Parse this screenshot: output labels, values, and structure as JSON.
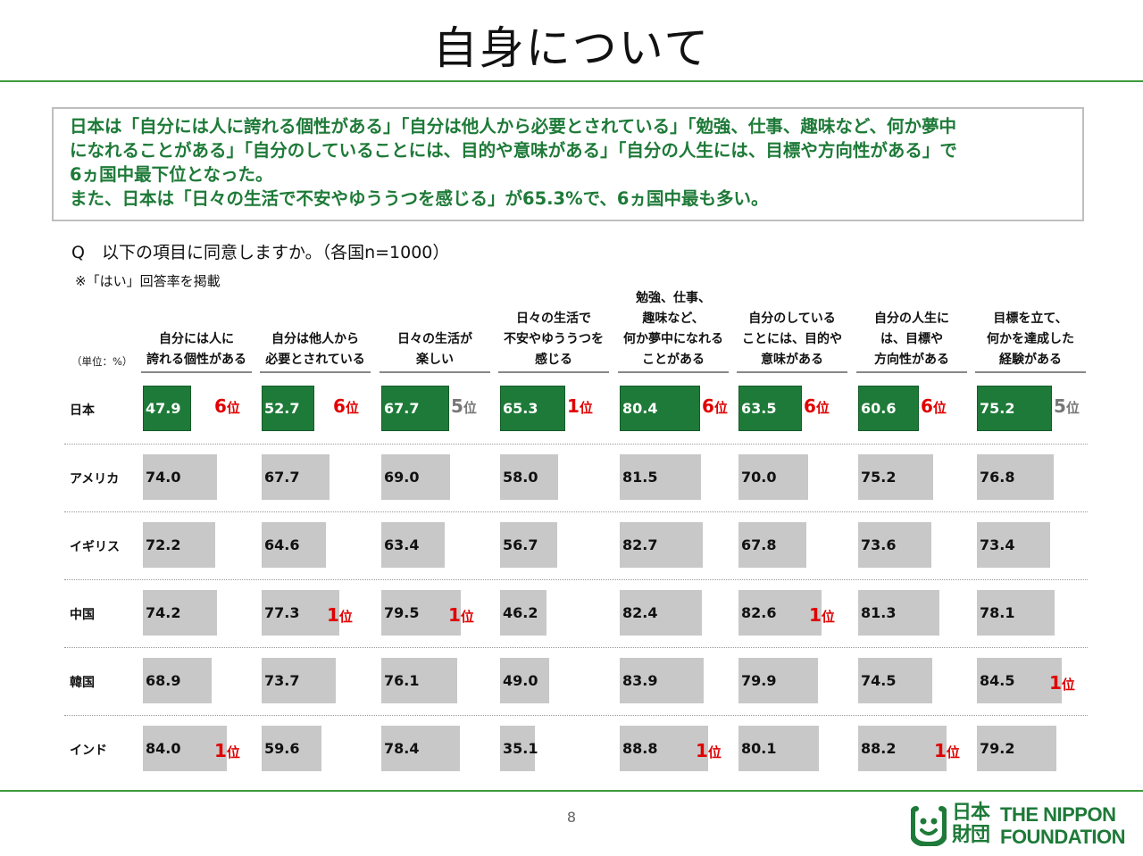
{
  "page": {
    "title": "自身について",
    "summary_lines": [
      "日本は「自分には人に誇れる個性がある」「自分は他人から必要とされている」「勉強、仕事、趣味など、何か夢中",
      "になれることがある」「自分のしていることには、目的や意味がある」「自分の人生には、目標や方向性がある」で",
      "6ヵ国中最下位となった。",
      "また、日本は「日々の生活で不安やゆううつを感じる」が65.3%で、6ヵ国中最も多い。"
    ],
    "question": "Q　以下の項目に同意しますか。（各国n=1000）",
    "note": "※「はい」回答率を掲載",
    "unit": "（単位：%）",
    "page_number": "8",
    "logo": {
      "jp_line1": "日本",
      "jp_line2": "財団",
      "en_line1": "THE NIPPON",
      "en_line2": "FOUNDATION"
    }
  },
  "chart_data": {
    "type": "table",
    "value_unit": "%",
    "categories": [
      [
        "自分には人に",
        "誇れる個性がある"
      ],
      [
        "自分は他人から",
        "必要とされている"
      ],
      [
        "日々の生活が",
        "楽しい"
      ],
      [
        "日々の生活で",
        "不安やゆううつを",
        "感じる"
      ],
      [
        "勉強、仕事、",
        "趣味など、",
        "何か夢中になれる",
        "ことがある"
      ],
      [
        "自分のしている",
        "ことには、目的や",
        "意味がある"
      ],
      [
        "自分の人生に",
        "は、目標や",
        "方向性がある"
      ],
      [
        "目標を立て、",
        "何かを達成した",
        "経験がある"
      ]
    ],
    "rank_suffix": "位",
    "series": [
      {
        "name": "日本",
        "values": [
          47.9,
          52.7,
          67.7,
          65.3,
          80.4,
          63.5,
          60.6,
          75.2
        ],
        "ranks": [
          6,
          6,
          5,
          1,
          6,
          6,
          6,
          5
        ]
      },
      {
        "name": "アメリカ",
        "values": [
          74.0,
          67.7,
          69.0,
          58.0,
          81.5,
          70.0,
          75.2,
          76.8
        ],
        "ranks": [
          null,
          null,
          null,
          null,
          null,
          null,
          null,
          null
        ]
      },
      {
        "name": "イギリス",
        "values": [
          72.2,
          64.6,
          63.4,
          56.7,
          82.7,
          67.8,
          73.6,
          73.4
        ],
        "ranks": [
          null,
          null,
          null,
          null,
          null,
          null,
          null,
          null
        ]
      },
      {
        "name": "中国",
        "values": [
          74.2,
          77.3,
          79.5,
          46.2,
          82.4,
          82.6,
          81.3,
          78.1
        ],
        "ranks": [
          null,
          1,
          1,
          null,
          null,
          1,
          null,
          null
        ]
      },
      {
        "name": "韓国",
        "values": [
          68.9,
          73.7,
          76.1,
          49.0,
          83.9,
          79.9,
          74.5,
          84.5
        ],
        "ranks": [
          null,
          null,
          null,
          null,
          null,
          null,
          null,
          1
        ]
      },
      {
        "name": "インド",
        "values": [
          84.0,
          59.6,
          78.4,
          35.1,
          88.8,
          80.1,
          88.2,
          79.2
        ],
        "ranks": [
          1,
          null,
          null,
          null,
          1,
          null,
          1,
          null
        ]
      }
    ],
    "colors": {
      "japan_bar": "#1e7a38",
      "other_bar": "#c8c8c8",
      "rank_top": "#e00000",
      "rank_other": "#777777"
    }
  }
}
